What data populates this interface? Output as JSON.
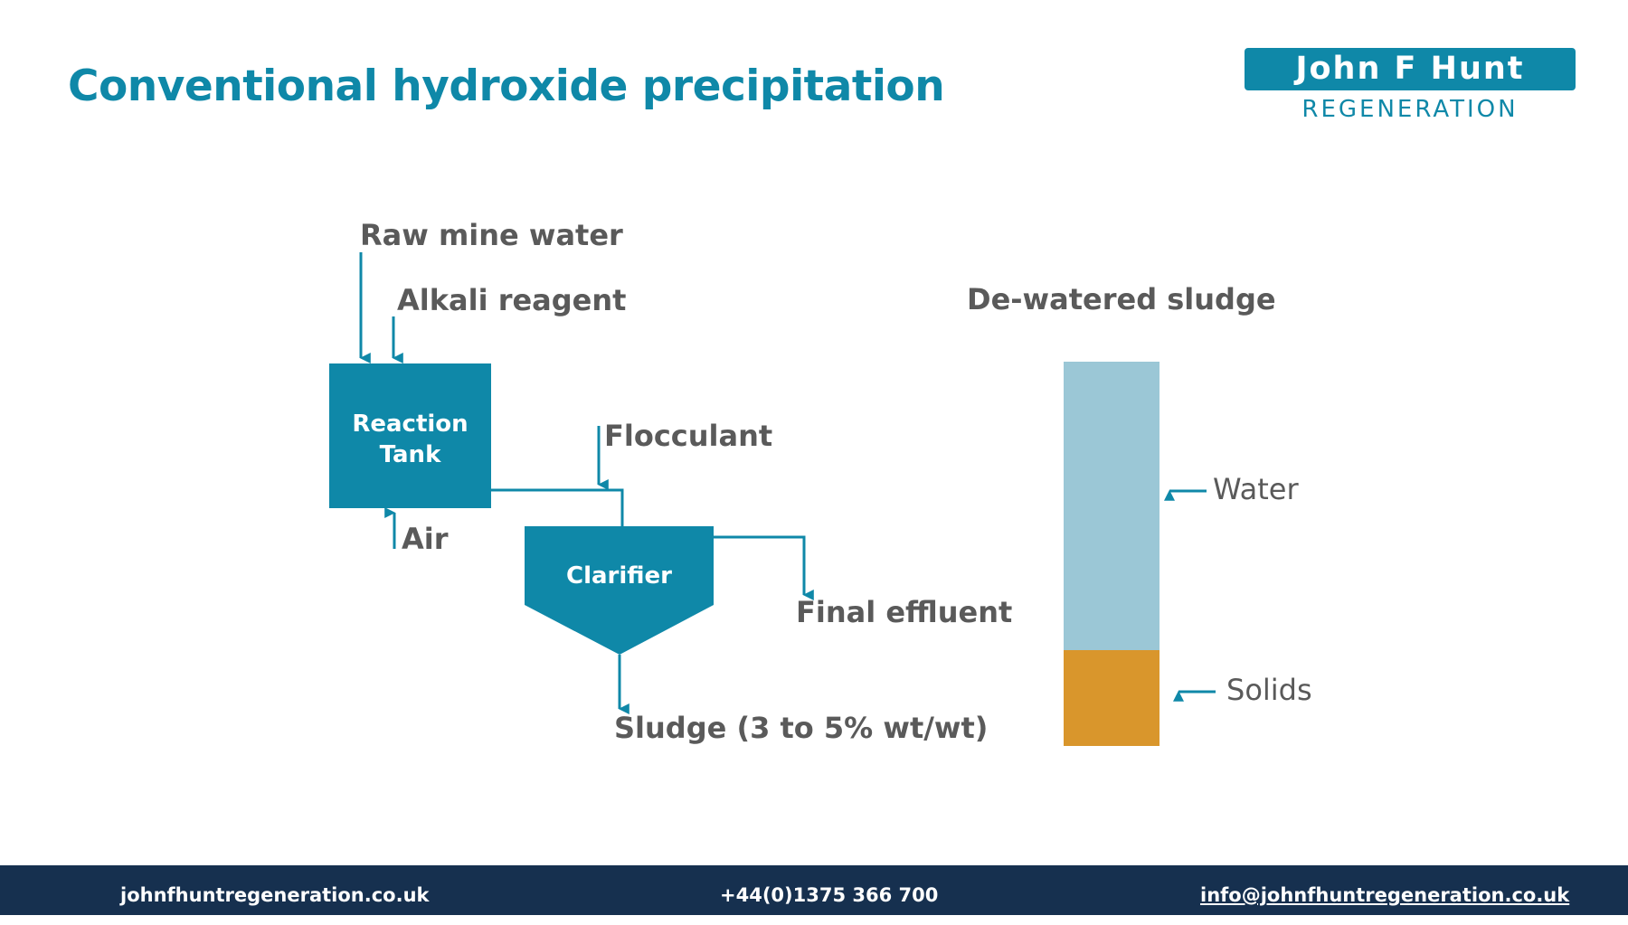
{
  "slide": {
    "title": "Conventional hydroxide precipitation"
  },
  "logo": {
    "name": "John F Hunt",
    "subtitle": "REGENERATION"
  },
  "diagram": {
    "inputs": {
      "raw_mine_water": "Raw mine water",
      "alkali_reagent": "Alkali reagent",
      "air": "Air",
      "flocculant": "Flocculant"
    },
    "reaction_tank": {
      "line1": "Reaction",
      "line2": "Tank"
    },
    "clarifier": "Clarifier",
    "outputs": {
      "final_effluent": "Final effluent",
      "sludge": "Sludge (3 to 5% wt/wt)"
    },
    "dewatered_sludge": {
      "title": "De-watered sludge",
      "water_label": "Water",
      "solids_label": "Solids",
      "solids_fraction": 0.25,
      "water_color": "#9bc7d6",
      "solids_color": "#d9962c"
    },
    "accent_color": "#0f88a8"
  },
  "footer": {
    "website": "johnfhuntregeneration.co.uk",
    "phone": "+44(0)1375 366 700",
    "email": "info@johnfhuntregeneration.co.uk"
  }
}
